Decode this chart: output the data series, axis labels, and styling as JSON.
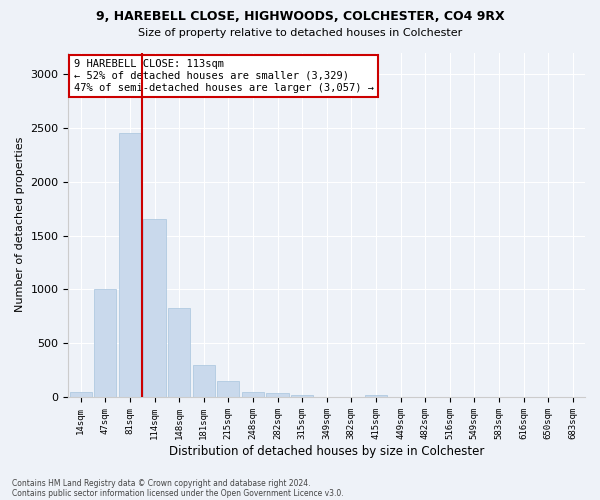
{
  "title1": "9, HAREBELL CLOSE, HIGHWOODS, COLCHESTER, CO4 9RX",
  "title2": "Size of property relative to detached houses in Colchester",
  "xlabel": "Distribution of detached houses by size in Colchester",
  "ylabel": "Number of detached properties",
  "categories": [
    "14sqm",
    "47sqm",
    "81sqm",
    "114sqm",
    "148sqm",
    "181sqm",
    "215sqm",
    "248sqm",
    "282sqm",
    "315sqm",
    "349sqm",
    "382sqm",
    "415sqm",
    "449sqm",
    "482sqm",
    "516sqm",
    "549sqm",
    "583sqm",
    "616sqm",
    "650sqm",
    "683sqm"
  ],
  "values": [
    50,
    1000,
    2450,
    1650,
    830,
    300,
    145,
    50,
    35,
    20,
    0,
    0,
    20,
    0,
    0,
    0,
    0,
    0,
    0,
    0,
    0
  ],
  "bar_color": "#c9d9ec",
  "bar_edge_color": "#a8c4de",
  "vline_color": "#cc0000",
  "annotation_text": "9 HAREBELL CLOSE: 113sqm\n← 52% of detached houses are smaller (3,329)\n47% of semi-detached houses are larger (3,057) →",
  "annotation_box_color": "#ffffff",
  "annotation_box_edge": "#cc0000",
  "ylim": [
    0,
    3200
  ],
  "yticks": [
    0,
    500,
    1000,
    1500,
    2000,
    2500,
    3000
  ],
  "footer1": "Contains HM Land Registry data © Crown copyright and database right 2024.",
  "footer2": "Contains public sector information licensed under the Open Government Licence v3.0.",
  "bg_color": "#eef2f8"
}
